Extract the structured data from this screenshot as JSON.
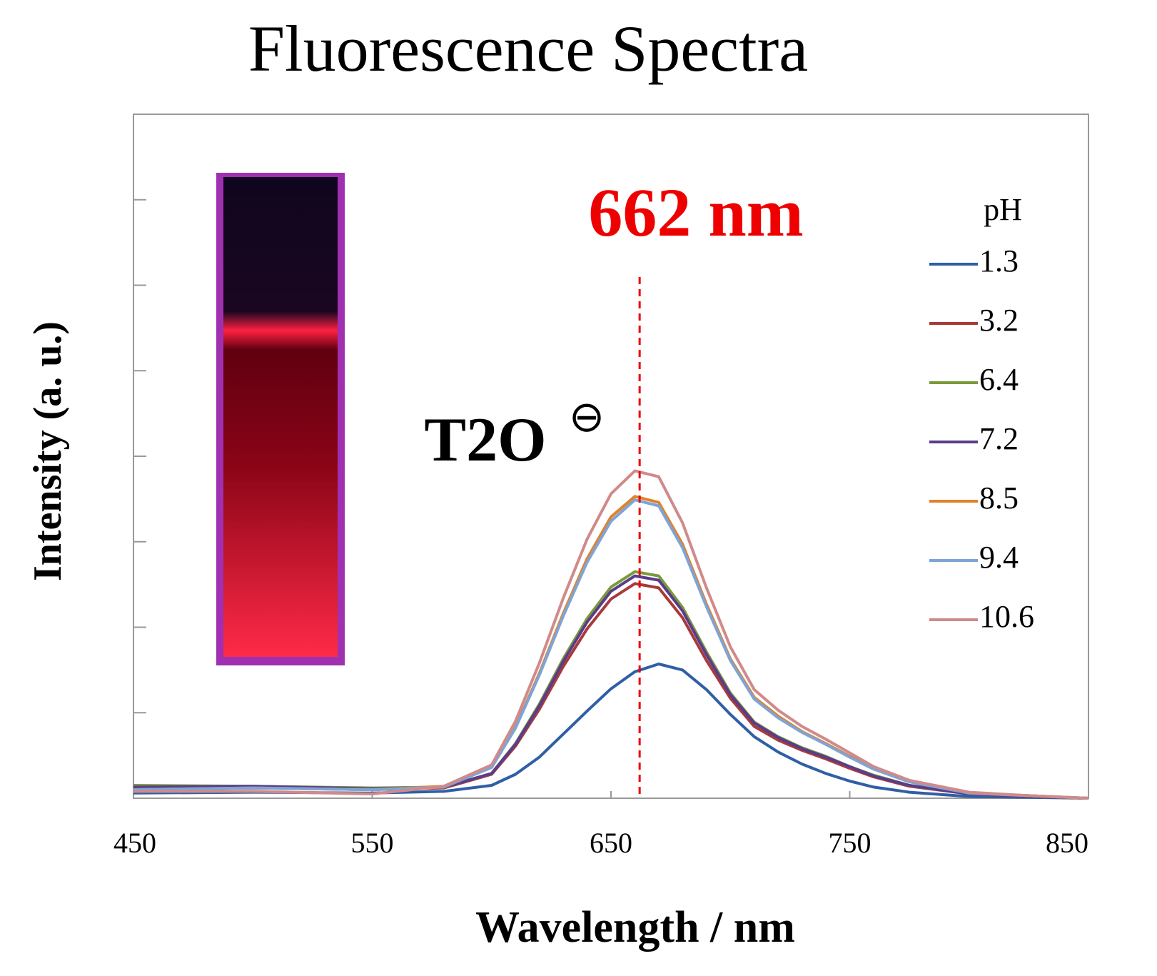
{
  "chart_data": {
    "type": "line",
    "title": "Fluorescence Spectra",
    "xlabel": "Wavelength / nm",
    "ylabel": "Intensity (a. u.)",
    "annotations": [
      "662 nm",
      "T2O",
      "⊖"
    ],
    "vline": 662,
    "legend_title": "pH",
    "legend": "right",
    "xlim": [
      450,
      850
    ],
    "xticks": [
      450,
      550,
      650,
      750,
      850
    ],
    "ylim": [
      0,
      8
    ],
    "yticks": [
      1,
      2,
      3,
      4,
      5,
      6,
      7
    ],
    "x": [
      450,
      500,
      550,
      580,
      600,
      610,
      620,
      630,
      640,
      650,
      660,
      670,
      680,
      690,
      700,
      710,
      720,
      730,
      740,
      750,
      760,
      775,
      800,
      825,
      850
    ],
    "series": [
      {
        "name": "1.3",
        "color": "#2f5fa5",
        "values": [
          0.06,
          0.07,
          0.06,
          0.08,
          0.15,
          0.28,
          0.48,
          0.75,
          1.02,
          1.28,
          1.48,
          1.57,
          1.5,
          1.27,
          0.98,
          0.72,
          0.54,
          0.4,
          0.29,
          0.2,
          0.13,
          0.07,
          0.02,
          0.01,
          0
        ]
      },
      {
        "name": "3.2",
        "color": "#a83a3a",
        "values": [
          0.1,
          0.12,
          0.1,
          0.12,
          0.28,
          0.61,
          1.04,
          1.54,
          1.98,
          2.33,
          2.51,
          2.46,
          2.11,
          1.61,
          1.17,
          0.84,
          0.68,
          0.56,
          0.46,
          0.35,
          0.25,
          0.14,
          0.05,
          0.02,
          0
        ]
      },
      {
        "name": "6.4",
        "color": "#7a9a3a",
        "values": [
          0.15,
          0.14,
          0.12,
          0.13,
          0.29,
          0.64,
          1.1,
          1.63,
          2.1,
          2.47,
          2.65,
          2.6,
          2.23,
          1.71,
          1.23,
          0.89,
          0.72,
          0.59,
          0.49,
          0.37,
          0.27,
          0.15,
          0.05,
          0.02,
          0
        ]
      },
      {
        "name": "7.2",
        "color": "#5a3c8c",
        "values": [
          0.13,
          0.14,
          0.11,
          0.13,
          0.29,
          0.63,
          1.08,
          1.6,
          2.06,
          2.42,
          2.6,
          2.55,
          2.19,
          1.68,
          1.21,
          0.88,
          0.71,
          0.58,
          0.48,
          0.37,
          0.26,
          0.15,
          0.05,
          0.02,
          0
        ]
      },
      {
        "name": "8.5",
        "color": "#e0822a",
        "values": [
          0.1,
          0.12,
          0.1,
          0.14,
          0.36,
          0.83,
          1.46,
          2.16,
          2.8,
          3.29,
          3.53,
          3.46,
          2.97,
          2.27,
          1.63,
          1.18,
          0.96,
          0.78,
          0.64,
          0.49,
          0.35,
          0.2,
          0.06,
          0.03,
          0
        ]
      },
      {
        "name": "9.4",
        "color": "#7ea4d6",
        "values": [
          0.1,
          0.12,
          0.1,
          0.13,
          0.36,
          0.82,
          1.44,
          2.13,
          2.76,
          3.24,
          3.49,
          3.42,
          2.93,
          2.24,
          1.61,
          1.16,
          0.94,
          0.77,
          0.63,
          0.48,
          0.34,
          0.19,
          0.06,
          0.03,
          0
        ]
      },
      {
        "name": "10.6",
        "color": "#d08a8a",
        "values": [
          0.08,
          0.08,
          0.05,
          0.14,
          0.39,
          0.9,
          1.58,
          2.34,
          3.03,
          3.56,
          3.83,
          3.76,
          3.22,
          2.46,
          1.77,
          1.27,
          1.03,
          0.84,
          0.69,
          0.53,
          0.37,
          0.21,
          0.07,
          0.03,
          0
        ]
      }
    ]
  }
}
